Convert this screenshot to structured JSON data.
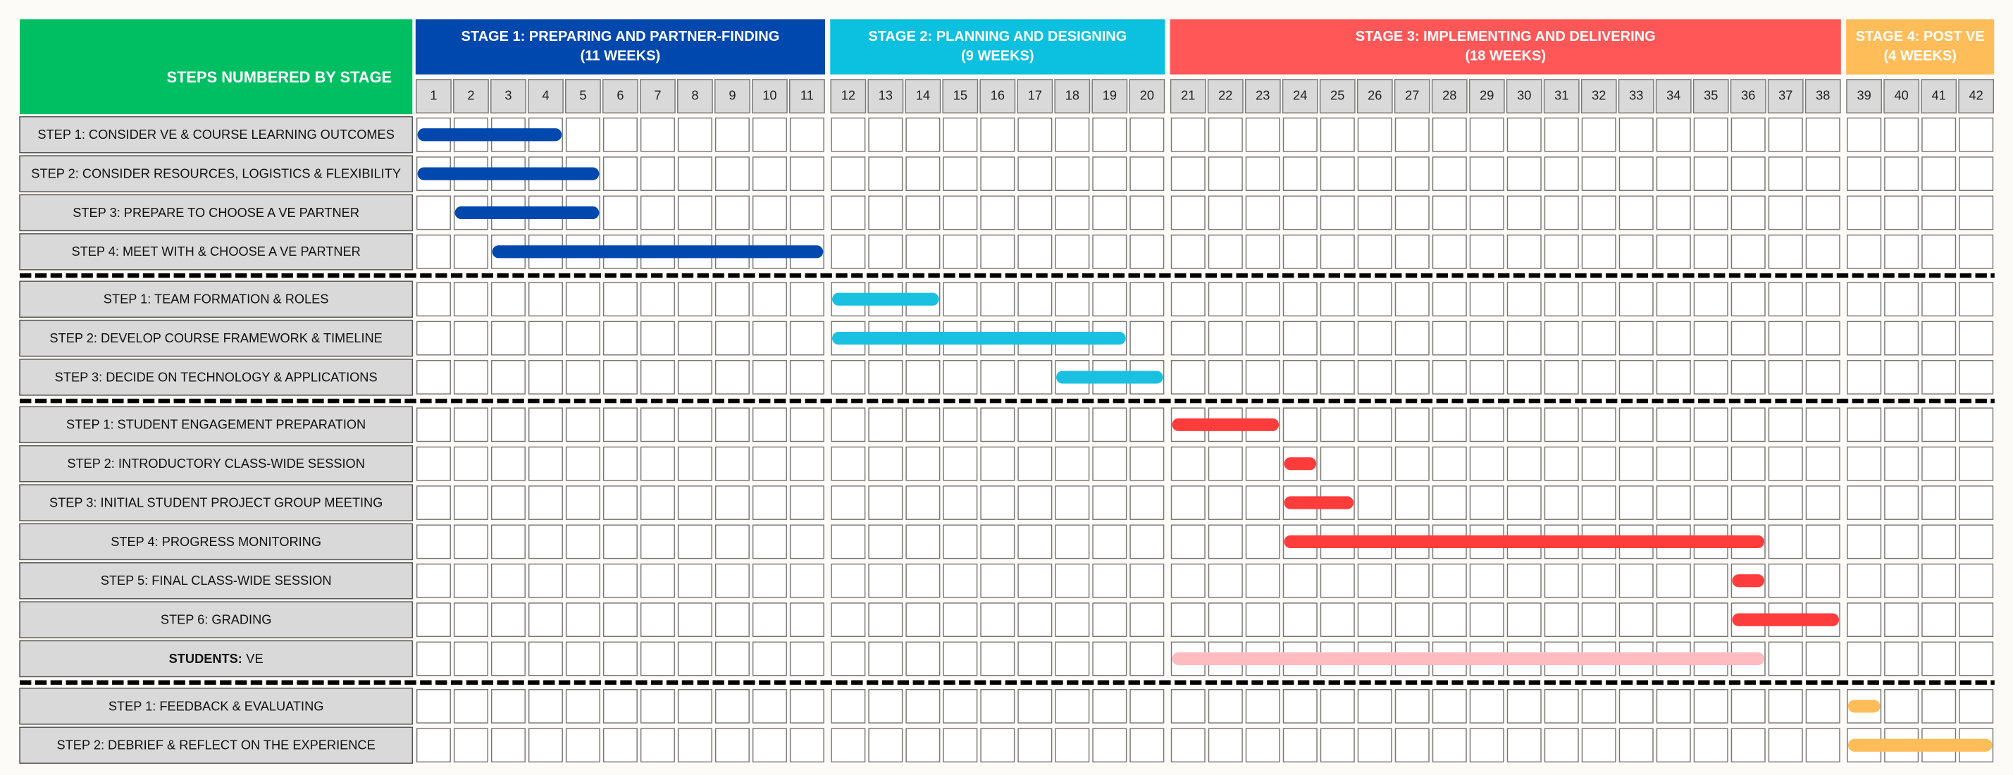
{
  "chart_data": {
    "type": "gantt",
    "corner_title": "STEPS NUMBERED BY STAGE",
    "corner_color": "#00bf63",
    "weeks": [
      1,
      2,
      3,
      4,
      5,
      6,
      7,
      8,
      9,
      10,
      11,
      12,
      13,
      14,
      15,
      16,
      17,
      18,
      19,
      20,
      21,
      22,
      23,
      24,
      25,
      26,
      27,
      28,
      29,
      30,
      31,
      32,
      33,
      34,
      35,
      36,
      37,
      38,
      39,
      40,
      41,
      42
    ],
    "stages": [
      {
        "title": "STAGE 1: PREPARING AND PARTNER-FINDING",
        "subtitle": "(11 WEEKS)",
        "span": [
          1,
          11
        ],
        "color": "#0048ae"
      },
      {
        "title": "STAGE 2: PLANNING AND DESIGNING",
        "subtitle": "(9 WEEKS)",
        "span": [
          12,
          20
        ],
        "color": "#0cc0df"
      },
      {
        "title": "STAGE 3: IMPLEMENTING AND DELIVERING",
        "subtitle": "(18 WEEKS)",
        "span": [
          21,
          38
        ],
        "color": "#ff5757"
      },
      {
        "title": "STAGE 4: POST VE",
        "subtitle": "(4 WEEKS)",
        "span": [
          39,
          42
        ],
        "color": "#ffbd59"
      }
    ],
    "groups": [
      {
        "color": "#0048ae",
        "rows": [
          {
            "label": "STEP 1: CONSIDER VE & COURSE LEARNING OUTCOMES",
            "start": 1,
            "end": 4
          },
          {
            "label": "STEP 2: CONSIDER RESOURCES, LOGISTICS & FLEXIBILITY",
            "start": 1,
            "end": 5
          },
          {
            "label": "STEP 3: PREPARE TO CHOOSE A VE PARTNER",
            "start": 2,
            "end": 5
          },
          {
            "label": "STEP 4: MEET WITH & CHOOSE A VE PARTNER",
            "start": 3,
            "end": 11
          }
        ]
      },
      {
        "color": "#1ac0df",
        "rows": [
          {
            "label": "STEP 1: TEAM FORMATION & ROLES",
            "start": 12,
            "end": 14
          },
          {
            "label": "STEP 2: DEVELOP COURSE FRAMEWORK & TIMELINE",
            "start": 12,
            "end": 19
          },
          {
            "label": "STEP 3: DECIDE ON TECHNOLOGY & APPLICATIONS",
            "start": 18,
            "end": 20
          }
        ]
      },
      {
        "color": "#ff3c3c",
        "rows": [
          {
            "label": "STEP 1: STUDENT ENGAGEMENT PREPARATION",
            "start": 21,
            "end": 23
          },
          {
            "label": "STEP 2: INTRODUCTORY CLASS-WIDE SESSION",
            "start": 24,
            "end": 24
          },
          {
            "label": "STEP 3: INITIAL STUDENT PROJECT GROUP MEETING",
            "start": 24,
            "end": 25
          },
          {
            "label": "STEP 4: PROGRESS MONITORING",
            "start": 24,
            "end": 36
          },
          {
            "label": "STEP 5: FINAL CLASS-WIDE SESSION",
            "start": 36,
            "end": 36
          },
          {
            "label": "STEP 6: GRADING",
            "start": 36,
            "end": 38
          },
          {
            "label_bold": "STUDENTS:",
            "label": "VE",
            "start": 21,
            "end": 36,
            "color": "#ffbcc0"
          }
        ]
      },
      {
        "color": "#ffbd59",
        "rows": [
          {
            "label": "STEP 1: FEEDBACK & EVALUATING",
            "start": 39,
            "end": 39
          },
          {
            "label": "STEP 2: DEBRIEF & REFLECT ON THE EXPERIENCE",
            "start": 39,
            "end": 42
          }
        ]
      }
    ]
  }
}
